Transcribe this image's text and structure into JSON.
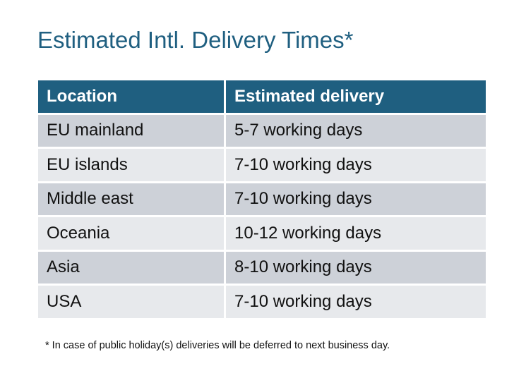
{
  "title": "Estimated Intl. Delivery Times*",
  "table": {
    "headers": [
      "Location",
      "Estimated delivery"
    ],
    "rows": [
      [
        "EU mainland",
        "5-7 working days"
      ],
      [
        "EU islands",
        "7-10 working days"
      ],
      [
        "Middle east",
        "7-10 working days"
      ],
      [
        "Oceania",
        "10-12 working days"
      ],
      [
        "Asia",
        "8-10 working days"
      ],
      [
        "USA",
        "7-10 working days"
      ]
    ]
  },
  "footnote": "* In case of public holiday(s) deliveries will be deferred to next business day.",
  "colors": {
    "header": "#1f5f80",
    "row_dark": "#cdd1d8",
    "row_light": "#e7e9ec",
    "title": "#1f5f80"
  }
}
